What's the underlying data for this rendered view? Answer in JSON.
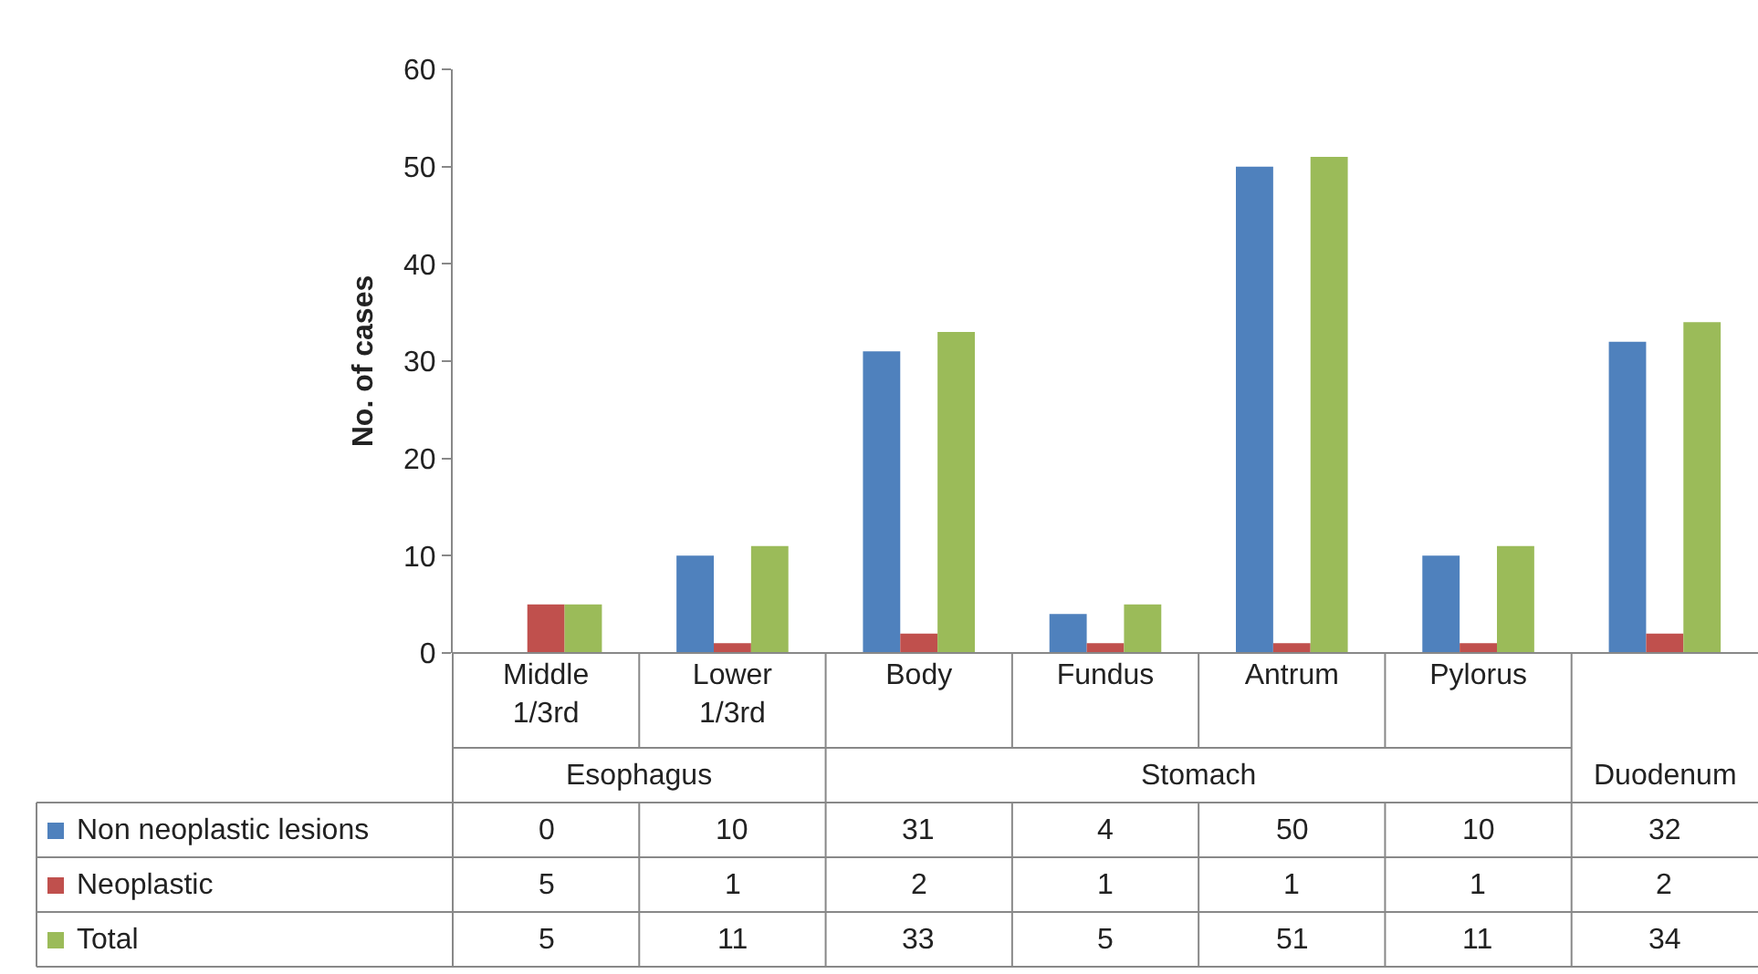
{
  "chart_data": {
    "type": "bar",
    "ylabel": "No. of cases",
    "categories": [
      "Middle\n1/3rd",
      "Lower\n1/3rd",
      "Body",
      "Fundus",
      "Antrum",
      "Pylorus",
      null
    ],
    "series": [
      {
        "name": "Non neoplastic lesions",
        "color": "#4f81bd",
        "values": [
          0,
          10,
          31,
          4,
          50,
          10,
          32
        ]
      },
      {
        "name": "Neoplastic",
        "color": "#c0504d",
        "values": [
          5,
          1,
          2,
          1,
          1,
          1,
          2
        ]
      },
      {
        "name": "Total",
        "color": "#9bbb59",
        "values": [
          5,
          11,
          33,
          5,
          51,
          11,
          34
        ]
      }
    ],
    "annotations": [
      "Esophagus",
      "Stomach",
      "Duodenum"
    ],
    "ylim": [
      0,
      60
    ],
    "yticks": [
      0,
      10,
      20,
      30,
      40,
      50,
      60
    ],
    "grid": false,
    "legend": "bottom",
    "data_labels": true
  }
}
